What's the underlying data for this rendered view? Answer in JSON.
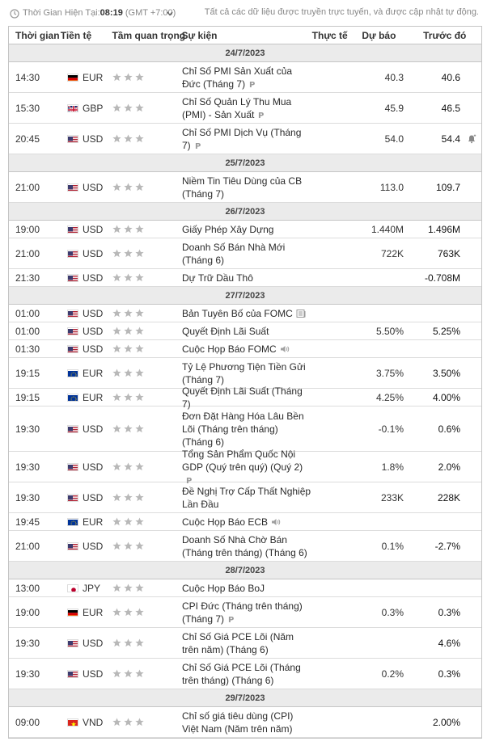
{
  "topbar": {
    "label": "Thời Gian Hiện Tại:",
    "time": "08:19",
    "timezone": "(GMT +7:00)",
    "note": "Tất cả các dữ liệu được truyền trực tuyến, và được cập nhật tự động."
  },
  "columns": {
    "time": "Thời gian",
    "currency": "Tiền tệ",
    "importance": "Tầm quan trọng",
    "event": "Sự kiện",
    "actual": "Thực tế",
    "forecast": "Dự báo",
    "previous": "Trước đó"
  },
  "groups": [
    {
      "date": "24/7/2023",
      "rows": [
        {
          "time": "14:30",
          "flag": "de",
          "currency": "EUR",
          "event": "Chỉ Số PMI Sản Xuất của Đức (Tháng 7)",
          "marker": "p",
          "actual": "",
          "forecast": "40.3",
          "previous": "40.6",
          "h": 38
        },
        {
          "time": "15:30",
          "flag": "gb",
          "currency": "GBP",
          "event": "Chỉ Số Quản Lý Thu Mua (PMI) - Sản Xuất",
          "marker": "p",
          "actual": "",
          "forecast": "45.9",
          "previous": "46.5",
          "h": 38
        },
        {
          "time": "20:45",
          "flag": "us",
          "currency": "USD",
          "event": "Chỉ Số PMI Dịch Vụ (Tháng 7)",
          "marker": "p",
          "actual": "",
          "forecast": "54.0",
          "previous": "54.4",
          "alert": true,
          "h": 38
        }
      ]
    },
    {
      "date": "25/7/2023",
      "rows": [
        {
          "time": "21:00",
          "flag": "us",
          "currency": "USD",
          "event": "Niềm Tin Tiêu Dùng của CB (Tháng 7)",
          "marker": "",
          "actual": "",
          "forecast": "113.0",
          "previous": "109.7",
          "h": 38
        }
      ]
    },
    {
      "date": "26/7/2023",
      "rows": [
        {
          "time": "19:00",
          "flag": "us",
          "currency": "USD",
          "event": "Giấy Phép Xây Dựng",
          "marker": "",
          "actual": "",
          "forecast": "1.440M",
          "previous": "1.496M",
          "h": 22
        },
        {
          "time": "21:00",
          "flag": "us",
          "currency": "USD",
          "event": "Doanh Số Bán Nhà Mới (Tháng 6)",
          "marker": "",
          "actual": "",
          "forecast": "722K",
          "previous": "763K",
          "h": 38
        },
        {
          "time": "21:30",
          "flag": "us",
          "currency": "USD",
          "event": "Dự Trữ Dầu Thô",
          "marker": "",
          "actual": "",
          "forecast": "",
          "previous": "-0.708M",
          "h": 22
        }
      ]
    },
    {
      "date": "27/7/2023",
      "rows": [
        {
          "time": "01:00",
          "flag": "us",
          "currency": "USD",
          "event": "Bản Tuyên Bố của FOMC",
          "marker": "report",
          "actual": "",
          "forecast": "",
          "previous": "",
          "h": 22
        },
        {
          "time": "01:00",
          "flag": "us",
          "currency": "USD",
          "event": "Quyết Định Lãi Suất",
          "marker": "",
          "actual": "",
          "forecast": "5.50%",
          "previous": "5.25%",
          "h": 22
        },
        {
          "time": "01:30",
          "flag": "us",
          "currency": "USD",
          "event": "Cuộc Họp Báo FOMC",
          "marker": "speaker",
          "actual": "",
          "forecast": "",
          "previous": "",
          "h": 22
        },
        {
          "time": "19:15",
          "flag": "eu",
          "currency": "EUR",
          "event": "Tỷ Lệ Phương Tiện Tiền Gửi (Tháng 7)",
          "marker": "",
          "actual": "",
          "forecast": "3.75%",
          "previous": "3.50%",
          "h": 38
        },
        {
          "time": "19:15",
          "flag": "eu",
          "currency": "EUR",
          "event": "Quyết Định Lãi Suất (Tháng 7)",
          "marker": "",
          "actual": "",
          "forecast": "4.25%",
          "previous": "4.00%",
          "h": 22
        },
        {
          "time": "19:30",
          "flag": "us",
          "currency": "USD",
          "event": "Đơn Đặt Hàng Hóa Lâu Bền Lõi (Tháng trên tháng) (Tháng 6)",
          "marker": "",
          "actual": "",
          "forecast": "-0.1%",
          "previous": "0.6%",
          "h": 56
        },
        {
          "time": "19:30",
          "flag": "us",
          "currency": "USD",
          "event": "Tổng Sản Phẩm Quốc Nội GDP (Quý trên quý) (Quý 2)",
          "marker": "p",
          "actual": "",
          "forecast": "1.8%",
          "previous": "2.0%",
          "h": 38
        },
        {
          "time": "19:30",
          "flag": "us",
          "currency": "USD",
          "event": "Đề Nghị Trợ Cấp Thất Nghiệp Lần Đầu",
          "marker": "",
          "actual": "",
          "forecast": "233K",
          "previous": "228K",
          "h": 38
        },
        {
          "time": "19:45",
          "flag": "eu",
          "currency": "EUR",
          "event": "Cuộc Họp Báo ECB",
          "marker": "speaker",
          "actual": "",
          "forecast": "",
          "previous": "",
          "h": 22
        },
        {
          "time": "21:00",
          "flag": "us",
          "currency": "USD",
          "event": "Doanh Số Nhà Chờ Bán (Tháng trên tháng) (Tháng 6)",
          "marker": "",
          "actual": "",
          "forecast": "0.1%",
          "previous": "-2.7%",
          "h": 38
        }
      ]
    },
    {
      "date": "28/7/2023",
      "rows": [
        {
          "time": "13:00",
          "flag": "jp",
          "currency": "JPY",
          "event": "Cuộc Họp Báo BoJ",
          "marker": "",
          "actual": "",
          "forecast": "",
          "previous": "",
          "h": 22
        },
        {
          "time": "19:00",
          "flag": "de",
          "currency": "EUR",
          "event": "CPI Đức (Tháng trên tháng) (Tháng 7)",
          "marker": "p",
          "actual": "",
          "forecast": "0.3%",
          "previous": "0.3%",
          "h": 38
        },
        {
          "time": "19:30",
          "flag": "us",
          "currency": "USD",
          "event": "Chỉ Số Giá PCE Lõi (Năm trên năm) (Tháng 6)",
          "marker": "",
          "actual": "",
          "forecast": "",
          "previous": "4.6%",
          "h": 38
        },
        {
          "time": "19:30",
          "flag": "us",
          "currency": "USD",
          "event": "Chỉ Số Giá PCE Lõi (Tháng trên tháng) (Tháng 6)",
          "marker": "",
          "actual": "",
          "forecast": "0.2%",
          "previous": "0.3%",
          "h": 38
        }
      ]
    },
    {
      "date": "29/7/2023",
      "rows": [
        {
          "time": "09:00",
          "flag": "vn",
          "currency": "VND",
          "event": "Chỉ số giá tiêu dùng (CPI) Việt Nam (Năm trên năm)",
          "marker": "",
          "actual": "",
          "forecast": "",
          "previous": "2.00%",
          "h": 38
        }
      ]
    }
  ],
  "colors": {
    "border": "#c5c5c5",
    "date_bg": "#ebebeb",
    "star": "#b8b8b8"
  }
}
